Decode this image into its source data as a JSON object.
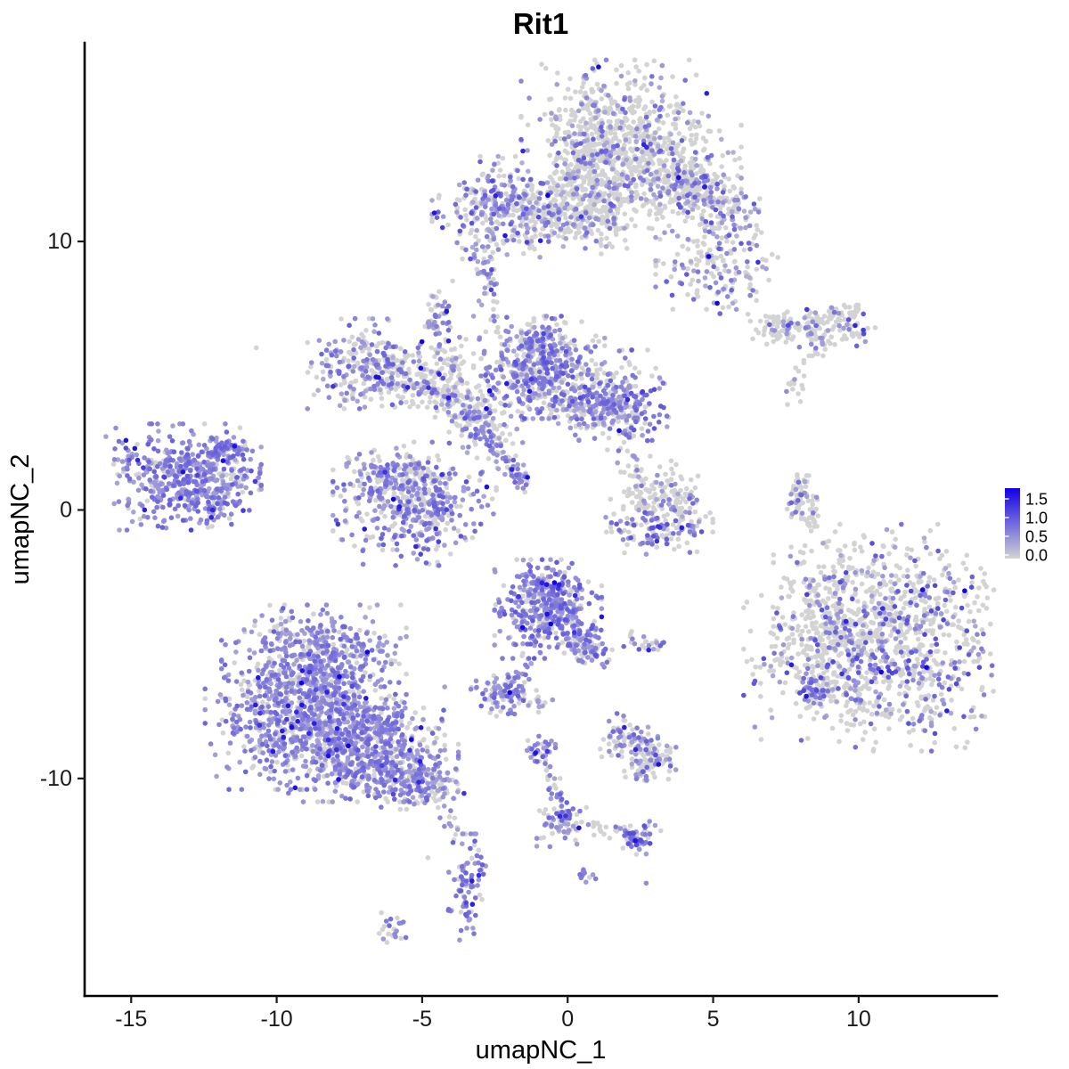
{
  "chart_data": {
    "type": "scatter",
    "title": "Rit1",
    "xlabel": "umapNC_1",
    "ylabel": "umapNC_2",
    "xlim": [
      -16.6,
      14.75
    ],
    "ylim": [
      -18.1,
      17.4
    ],
    "x_ticks": [
      {
        "v": -15,
        "label": "-15"
      },
      {
        "v": -10,
        "label": "-10"
      },
      {
        "v": -5,
        "label": "-5"
      },
      {
        "v": 0,
        "label": "0"
      },
      {
        "v": 5,
        "label": "5"
      },
      {
        "v": 10,
        "label": "10"
      }
    ],
    "y_ticks": [
      {
        "v": 10,
        "label": "10"
      },
      {
        "v": 0,
        "label": "0"
      },
      {
        "v": -10,
        "label": "-10"
      }
    ],
    "grid": false,
    "legend": {
      "position": "right",
      "labels": [
        "1.5",
        "1.0",
        "0.5",
        "0.0"
      ],
      "values": [
        1.5,
        1.0,
        0.5,
        0.0
      ]
    },
    "color_scale": {
      "low": "#D3D3D3",
      "high": "#1000E4",
      "max_value": 1.8,
      "description": "expression 0 = light grey, high = blue, Lab-like purple midtones"
    },
    "point_radius": 2.8,
    "seed": 42,
    "clusters": [
      {
        "k": "b",
        "id": "top-cap-main",
        "x": 1.62,
        "y": 14.0,
        "sx": 1.4,
        "sy": 1.2,
        "n": 600,
        "p0": 0.72,
        "lo": 0.3,
        "hi": 1.0
      },
      {
        "k": "b",
        "id": "top-cap-right",
        "x": 3.3,
        "y": 12.5,
        "sx": 1.16,
        "sy": 1.0,
        "n": 260,
        "p0": 0.75,
        "lo": 0.3,
        "hi": 1.0
      },
      {
        "k": "b",
        "id": "top-cap-left-lobe",
        "x": 0.55,
        "y": 11.95,
        "sx": 0.77,
        "sy": 0.93,
        "n": 150,
        "p0": 0.8,
        "lo": 0.3,
        "hi": 0.9
      },
      {
        "k": "l",
        "id": "top-cap-wing",
        "x1": 3.61,
        "y1": 12.52,
        "x2": 5.9,
        "y2": 11.0,
        "j": 0.43,
        "n": 220,
        "p0": 0.58,
        "lo": 0.3,
        "hi": 1.1
      },
      {
        "k": "b",
        "id": "top-wing-lower-blob",
        "x": 5.14,
        "y": 9.2,
        "sx": 0.92,
        "sy": 0.83,
        "n": 180,
        "p0": 0.6,
        "lo": 0.3,
        "hi": 1.1
      },
      {
        "k": "b",
        "id": "band-left-blob",
        "x": -2.36,
        "y": 11.26,
        "sx": 1.0,
        "sy": 0.83,
        "n": 300,
        "p0": 0.45,
        "lo": 0.35,
        "hi": 1.1
      },
      {
        "k": "b",
        "id": "band-middle",
        "x": 0.0,
        "y": 10.96,
        "sx": 1.38,
        "sy": 0.53,
        "n": 220,
        "p0": 0.78,
        "lo": 0.3,
        "hi": 0.9
      },
      {
        "k": "b",
        "id": "band-column",
        "x": 1.25,
        "y": 11.7,
        "sx": 0.37,
        "sy": 1.0,
        "n": 110,
        "p0": 0.85,
        "lo": 0.3,
        "hi": 0.8
      },
      {
        "k": "l",
        "id": "band-drip",
        "x1": -2.57,
        "y1": 10.43,
        "x2": -2.72,
        "y2": 9.77,
        "j": 0.1,
        "n": 12,
        "p0": 0.5,
        "lo": 0.4,
        "hi": 0.9
      },
      {
        "k": "b",
        "id": "small-streak",
        "x": -2.72,
        "y": 8.64,
        "sx": 0.21,
        "sy": 0.47,
        "n": 30,
        "p0": 0.3,
        "lo": 0.4,
        "hi": 0.9
      },
      {
        "k": "b",
        "id": "small-blob-left",
        "x": -4.5,
        "y": 7.31,
        "sx": 0.34,
        "sy": 0.53,
        "n": 45,
        "p0": 0.45,
        "lo": 0.4,
        "hi": 0.9
      },
      {
        "k": "b",
        "id": "central-upperleft-arm",
        "x": -7.1,
        "y": 5.45,
        "sx": 0.8,
        "sy": 0.73,
        "n": 190,
        "p0": 0.5,
        "lo": 0.35,
        "hi": 1.0
      },
      {
        "k": "b",
        "id": "central-arm2",
        "x": -5.57,
        "y": 5.05,
        "sx": 0.92,
        "sy": 0.53,
        "n": 150,
        "p0": 0.72,
        "lo": 0.3,
        "hi": 0.9
      },
      {
        "k": "l",
        "id": "central-bridge",
        "x1": -5.11,
        "y1": 4.72,
        "x2": -2.97,
        "y2": 3.55,
        "j": 0.37,
        "n": 110,
        "p0": 0.75,
        "lo": 0.3,
        "hi": 0.9
      },
      {
        "k": "l",
        "id": "central-vert-strand",
        "x1": -4.04,
        "y1": 6.21,
        "x2": -3.82,
        "y2": 3.39,
        "j": 0.25,
        "n": 70,
        "p0": 0.8,
        "lo": 0.3,
        "hi": 0.9
      },
      {
        "k": "b",
        "id": "central-core",
        "x": -0.98,
        "y": 5.31,
        "sx": 0.98,
        "sy": 0.83,
        "n": 420,
        "p0": 0.35,
        "lo": 0.4,
        "hi": 1.1
      },
      {
        "k": "b",
        "id": "central-right-arm",
        "x": 0.55,
        "y": 4.05,
        "sx": 0.92,
        "sy": 0.6,
        "n": 200,
        "p0": 0.6,
        "lo": 0.35,
        "hi": 1.0
      },
      {
        "k": "b",
        "id": "central-right-end",
        "x": 1.93,
        "y": 3.98,
        "sx": 0.67,
        "sy": 0.86,
        "n": 210,
        "p0": 0.45,
        "lo": 0.4,
        "hi": 1.1
      },
      {
        "k": "l",
        "id": "central-streak-down",
        "x1": -3.43,
        "y1": 3.65,
        "x2": -1.38,
        "y2": 0.83,
        "j": 0.15,
        "n": 90,
        "p0": 0.25,
        "lo": 0.4,
        "hi": 1.0
      },
      {
        "k": "b",
        "id": "central-neck",
        "x": -2.81,
        "y": 3.05,
        "sx": 0.55,
        "sy": 0.66,
        "n": 90,
        "p0": 0.7,
        "lo": 0.35,
        "hi": 0.9
      },
      {
        "k": "b",
        "id": "central-top-bump",
        "x": -1.13,
        "y": 6.21,
        "sx": 0.43,
        "sy": 0.4,
        "n": 70,
        "p0": 0.45,
        "lo": 0.4,
        "hi": 1.0
      },
      {
        "k": "l",
        "id": "strand-to-band",
        "x1": -2.6,
        "y1": 8.04,
        "x2": -2.36,
        "y2": 6.45,
        "j": 0.12,
        "n": 10,
        "p0": 0.75,
        "lo": 0.4,
        "hi": 0.8
      },
      {
        "k": "l",
        "id": "strand-central-south",
        "x1": 2.02,
        "y1": 3.22,
        "x2": 2.48,
        "y2": 1.06,
        "j": 0.12,
        "n": 12,
        "p0": 0.75,
        "lo": 0.4,
        "hi": 0.8
      },
      {
        "k": "b",
        "id": "far-left-main",
        "x": -13.2,
        "y": 1.23,
        "sx": 1.16,
        "sy": 0.86,
        "n": 450,
        "p0": 0.12,
        "lo": 0.4,
        "hi": 1.0,
        "rare": 0.03
      },
      {
        "k": "l",
        "id": "far-left-tail",
        "x1": -12.14,
        "y1": 1.99,
        "x2": -11.28,
        "y2": 2.52,
        "j": 0.25,
        "n": 50,
        "p0": 0.25,
        "lo": 0.4,
        "hi": 1.0
      },
      {
        "k": "b",
        "id": "far-left-bottom",
        "x": -12.14,
        "y": 0.07,
        "sx": 0.43,
        "sy": 0.33,
        "n": 50,
        "p0": 0.2,
        "lo": 0.45,
        "hi": 1.1
      },
      {
        "k": "b",
        "id": "far-left-right-edge",
        "x": -11.47,
        "y": 1.06,
        "sx": 0.37,
        "sy": 0.37,
        "n": 40,
        "p0": 0.55,
        "lo": 0.4,
        "hi": 0.9
      },
      {
        "k": "b",
        "id": "midleft-oval",
        "x": -5.26,
        "y": 0.23,
        "sx": 1.22,
        "sy": 1.0,
        "n": 480,
        "p0": 0.38,
        "lo": 0.4,
        "hi": 1.0
      },
      {
        "k": "b",
        "id": "midleft-oval-bump",
        "x": -6.33,
        "y": 1.39,
        "sx": 0.55,
        "sy": 0.43,
        "n": 90,
        "p0": 0.5,
        "lo": 0.4,
        "hi": 0.9
      },
      {
        "k": "b",
        "id": "mid-u-top",
        "x": 2.6,
        "y": 0.66,
        "sx": 0.49,
        "sy": 0.53,
        "n": 90,
        "p0": 0.8,
        "lo": 0.35,
        "hi": 0.9
      },
      {
        "k": "b",
        "id": "mid-u-bottom",
        "x": 3.15,
        "y": -0.66,
        "sx": 0.8,
        "sy": 0.43,
        "n": 130,
        "p0": 0.5,
        "lo": 0.4,
        "hi": 1.1
      },
      {
        "k": "b",
        "id": "mid-u-right",
        "x": 3.94,
        "y": 0.4,
        "sx": 0.31,
        "sy": 0.49,
        "n": 50,
        "p0": 0.75,
        "lo": 0.35,
        "hi": 0.9
      },
      {
        "k": "l",
        "id": "right-wing",
        "x1": 6.67,
        "y1": 6.64,
        "x2": 9.11,
        "y2": 7.04,
        "j": 0.25,
        "n": 120,
        "p0": 0.78,
        "lo": 0.4,
        "hi": 1.0
      },
      {
        "k": "b",
        "id": "right-wing-end",
        "x": 9.72,
        "y": 6.87,
        "sx": 0.37,
        "sy": 0.33,
        "n": 40,
        "p0": 0.7,
        "lo": 0.4,
        "hi": 1.2
      },
      {
        "k": "l",
        "id": "right-wing-tail",
        "x1": 8.96,
        "y1": 7.3,
        "x2": 10.03,
        "y2": 7.54,
        "j": 0.12,
        "n": 25,
        "p0": 0.85,
        "lo": 0.4,
        "hi": 0.9
      },
      {
        "k": "b",
        "id": "right-wing-lower",
        "x": 8.65,
        "y": 6.2,
        "sx": 0.31,
        "sy": 0.2,
        "n": 25,
        "p0": 0.8,
        "lo": 0.4,
        "hi": 0.9
      },
      {
        "k": "b",
        "id": "tiny-pair",
        "x": 7.83,
        "y": 4.72,
        "sx": 0.24,
        "sy": 0.37,
        "n": 18,
        "p0": 0.85,
        "lo": 0.4,
        "hi": 0.9
      },
      {
        "k": "l",
        "id": "right-s-strand",
        "x1": 8.13,
        "y1": 1.3,
        "x2": 7.83,
        "y2": -0.2,
        "j": 0.15,
        "n": 60,
        "p0": 0.75,
        "lo": 0.4,
        "hi": 1.0
      },
      {
        "k": "l",
        "id": "right-s-strand2",
        "x1": 8.44,
        "y1": 0.47,
        "x2": 8.44,
        "y2": -0.66,
        "j": 0.1,
        "n": 25,
        "p0": 0.9,
        "lo": 0.4,
        "hi": 0.9
      },
      {
        "k": "b",
        "id": "big-right-upper",
        "x": 11.1,
        "y": -3.59,
        "sx": 1.75,
        "sy": 1.33,
        "n": 560,
        "p0": 0.72,
        "lo": 0.35,
        "hi": 1.2
      },
      {
        "k": "b",
        "id": "big-right-lower",
        "x": 10.65,
        "y": -6.08,
        "sx": 2.0,
        "sy": 1.26,
        "n": 560,
        "p0": 0.72,
        "lo": 0.35,
        "hi": 1.2
      },
      {
        "k": "b",
        "id": "big-right-leftlobe",
        "x": 8.96,
        "y": -4.42,
        "sx": 0.86,
        "sy": 1.0,
        "n": 200,
        "p0": 0.75,
        "lo": 0.35,
        "hi": 1.1
      },
      {
        "k": "b",
        "id": "big-right-dense-patch",
        "x": 8.5,
        "y": -6.74,
        "sx": 0.31,
        "sy": 0.27,
        "n": 40,
        "p0": 0.25,
        "lo": 0.5,
        "hi": 1.2
      },
      {
        "k": "b",
        "id": "big-right-top-sparse",
        "x": 9.26,
        "y": -2.26,
        "sx": 0.55,
        "sy": 0.6,
        "n": 25,
        "p0": 0.85,
        "lo": 0.4,
        "hi": 0.9
      },
      {
        "k": "l",
        "id": "big-right-outliers",
        "x1": 7.89,
        "y1": -1.59,
        "x2": 8.5,
        "y2": -3.09,
        "j": 0.15,
        "n": 12,
        "p0": 0.7,
        "lo": 0.4,
        "hi": 0.9
      },
      {
        "k": "b",
        "id": "center-bottom-core",
        "x": -0.67,
        "y": -3.69,
        "sx": 0.8,
        "sy": 0.8,
        "n": 360,
        "p0": 0.2,
        "lo": 0.45,
        "hi": 1.1
      },
      {
        "k": "l",
        "id": "center-bottom-arm",
        "x1": 0.09,
        "y1": -4.58,
        "x2": 1.07,
        "y2": -5.48,
        "j": 0.3,
        "n": 120,
        "p0": 0.45,
        "lo": 0.4,
        "hi": 1.0
      },
      {
        "k": "b",
        "id": "center-bottom-topbump",
        "x": -0.76,
        "y": -2.76,
        "sx": 0.43,
        "sy": 0.33,
        "n": 70,
        "p0": 0.3,
        "lo": 0.45,
        "hi": 1.0
      },
      {
        "k": "l",
        "id": "trail-to-small-blob",
        "x1": -1.19,
        "y1": -5.65,
        "x2": -1.87,
        "y2": -6.51,
        "j": 0.12,
        "n": 14,
        "p0": 0.4,
        "lo": 0.4,
        "hi": 0.9
      },
      {
        "k": "b",
        "id": "small-purple-blob",
        "x": -2.2,
        "y": -6.84,
        "sx": 0.49,
        "sy": 0.33,
        "n": 90,
        "p0": 0.3,
        "lo": 0.45,
        "hi": 1.0
      },
      {
        "k": "b",
        "id": "small-dots-right",
        "x": -1.01,
        "y": -7.14,
        "sx": 0.24,
        "sy": 0.17,
        "n": 12,
        "p0": 0.5,
        "lo": 0.4,
        "hi": 0.9
      },
      {
        "k": "b",
        "id": "small-dots-below",
        "x": -2.14,
        "y": -7.57,
        "sx": 0.15,
        "sy": 0.12,
        "n": 6,
        "p0": 0.6,
        "lo": 0.4,
        "hi": 0.8
      },
      {
        "k": "b",
        "id": "small-pair-right",
        "x": 2.78,
        "y": -4.88,
        "sx": 0.37,
        "sy": 0.2,
        "n": 25,
        "p0": 0.55,
        "lo": 0.4,
        "hi": 1.0
      },
      {
        "k": "b",
        "id": "bottomleft-top",
        "x": -8.72,
        "y": -5.84,
        "sx": 1.38,
        "sy": 1.0,
        "n": 540,
        "p0": 0.3,
        "lo": 0.4,
        "hi": 0.95
      },
      {
        "k": "b",
        "id": "bottomleft-mid",
        "x": -9.08,
        "y": -7.74,
        "sx": 1.47,
        "sy": 1.16,
        "n": 580,
        "p0": 0.28,
        "lo": 0.4,
        "hi": 0.95,
        "rare": 0.025
      },
      {
        "k": "b",
        "id": "bottomleft-lower",
        "x": -7.4,
        "y": -8.73,
        "sx": 1.38,
        "sy": 0.93,
        "n": 500,
        "p0": 0.3,
        "lo": 0.4,
        "hi": 0.95
      },
      {
        "k": "b",
        "id": "bottomleft-taper",
        "x": -5.87,
        "y": -9.63,
        "sx": 0.92,
        "sy": 0.66,
        "n": 270,
        "p0": 0.35,
        "lo": 0.4,
        "hi": 0.95
      },
      {
        "k": "l",
        "id": "bottomleft-tail",
        "x1": -5.11,
        "y1": -10.06,
        "x2": -4.04,
        "y2": -10.49,
        "j": 0.3,
        "n": 80,
        "p0": 0.45,
        "lo": 0.4,
        "hi": 0.95
      },
      {
        "k": "b",
        "id": "bottomleft-top-fringe",
        "x": -8.47,
        "y": -4.75,
        "sx": 0.92,
        "sy": 0.27,
        "n": 60,
        "p0": 0.6,
        "lo": 0.35,
        "hi": 0.8
      },
      {
        "k": "l",
        "id": "south-trail",
        "x1": -4.25,
        "y1": -11.06,
        "x2": -3.76,
        "y2": -12.62,
        "j": 0.15,
        "n": 14,
        "p0": 0.5,
        "lo": 0.4,
        "hi": 0.9
      },
      {
        "k": "b",
        "id": "banana-blob",
        "x": -3.46,
        "y": -14.04,
        "sx": 0.28,
        "sy": 0.86,
        "n": 90,
        "p0": 0.25,
        "lo": 0.45,
        "hi": 1.0
      },
      {
        "k": "b",
        "id": "tiny-southwest-blob",
        "x": -6.02,
        "y": -15.6,
        "sx": 0.28,
        "sy": 0.22,
        "n": 20,
        "p0": 0.4,
        "lo": 0.45,
        "hi": 0.9
      },
      {
        "k": "b",
        "id": "v-top-blob",
        "x": -0.89,
        "y": -9.0,
        "sx": 0.25,
        "sy": 0.25,
        "n": 30,
        "p0": 0.25,
        "lo": 0.45,
        "hi": 1.0
      },
      {
        "k": "l",
        "id": "v-left-trail",
        "x1": -0.76,
        "y1": -9.4,
        "x2": -0.09,
        "y2": -11.29,
        "j": 0.12,
        "n": 30,
        "p0": 0.4,
        "lo": 0.4,
        "hi": 1.0
      },
      {
        "k": "b",
        "id": "v-elbow-blob",
        "x": -0.21,
        "y": -11.62,
        "sx": 0.37,
        "sy": 0.4,
        "n": 60,
        "p0": 0.4,
        "lo": 0.4,
        "hi": 1.0
      },
      {
        "k": "l",
        "id": "v-right-trail",
        "x1": 0.24,
        "y1": -11.72,
        "x2": 2.08,
        "y2": -12.05,
        "j": 0.12,
        "n": 25,
        "p0": 0.5,
        "lo": 0.4,
        "hi": 0.9
      },
      {
        "k": "b",
        "id": "v-end-blob",
        "x": 2.42,
        "y": -12.15,
        "sx": 0.34,
        "sy": 0.3,
        "n": 60,
        "p0": 0.3,
        "lo": 0.45,
        "hi": 1.2
      },
      {
        "k": "b",
        "id": "tiny-under-v",
        "x": 0.64,
        "y": -13.58,
        "sx": 0.18,
        "sy": 0.15,
        "n": 12,
        "p0": 0.3,
        "lo": 0.45,
        "hi": 0.9
      },
      {
        "k": "b",
        "id": "small-se-upper",
        "x": 2.11,
        "y": -8.5,
        "sx": 0.43,
        "sy": 0.4,
        "n": 80,
        "p0": 0.45,
        "lo": 0.4,
        "hi": 1.0
      },
      {
        "k": "b",
        "id": "small-se-lower",
        "x": 2.85,
        "y": -9.3,
        "sx": 0.43,
        "sy": 0.4,
        "n": 80,
        "p0": 0.5,
        "lo": 0.4,
        "hi": 1.0
      },
      {
        "k": "b",
        "id": "small-se-fringe",
        "x": 2.48,
        "y": -9.83,
        "sx": 0.43,
        "sy": 0.17,
        "n": 15,
        "p0": 0.6,
        "lo": 0.4,
        "hi": 0.8
      }
    ],
    "extra_points": [
      {
        "x": -0.58,
        "y": -4.25,
        "v": 1.8
      },
      {
        "x": -1.99,
        "y": -6.8,
        "v": 1.8
      },
      {
        "x": 3.92,
        "y": -0.66,
        "v": 1.55
      },
      {
        "x": -12.2,
        "y": 0.0,
        "v": 1.5
      },
      {
        "x": 9.88,
        "y": 6.87,
        "v": 1.5
      },
      {
        "x": 10.16,
        "y": 6.7,
        "v": 1.3
      },
      {
        "x": -8.22,
        "y": -8.56,
        "v": 1.45
      },
      {
        "x": -4.53,
        "y": -0.7,
        "v": 1.4
      },
      {
        "x": -10.7,
        "y": 6.04,
        "v": 0
      },
      {
        "x": -4.8,
        "y": -12.95,
        "v": 0
      },
      {
        "x": -0.76,
        "y": -11.16,
        "v": 0
      },
      {
        "x": 8.1,
        "y": -1.6,
        "v": 0
      },
      {
        "x": 2.7,
        "y": -13.9,
        "v": 0.6
      },
      {
        "x": -6.4,
        "y": -15.0,
        "v": 0
      }
    ]
  }
}
